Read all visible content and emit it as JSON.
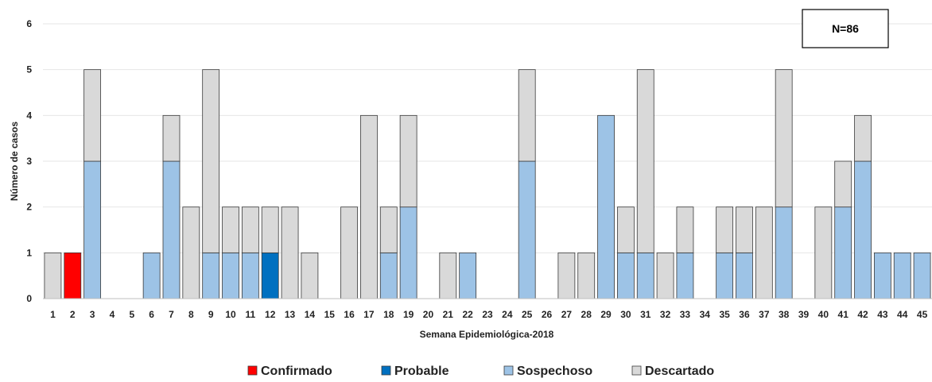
{
  "chart_data": {
    "type": "bar",
    "stacked": true,
    "xlabel": "Semana Epidemiológica-2018",
    "ylabel": "Número de casos",
    "ylim": [
      0,
      6
    ],
    "yticks": [
      0,
      1,
      2,
      3,
      4,
      5,
      6
    ],
    "grid": true,
    "legend_position": "bottom",
    "annotation": "N=86",
    "categories": [
      "1",
      "2",
      "3",
      "4",
      "5",
      "6",
      "7",
      "8",
      "9",
      "10",
      "11",
      "12",
      "13",
      "14",
      "15",
      "16",
      "17",
      "18",
      "19",
      "20",
      "21",
      "22",
      "23",
      "24",
      "25",
      "26",
      "27",
      "28",
      "29",
      "30",
      "31",
      "32",
      "33",
      "34",
      "35",
      "36",
      "37",
      "38",
      "39",
      "40",
      "41",
      "42",
      "43",
      "44",
      "45"
    ],
    "series": [
      {
        "name": "Confirmado",
        "color": "#ff0000",
        "values": [
          0,
          1,
          0,
          0,
          0,
          0,
          0,
          0,
          0,
          0,
          0,
          0,
          0,
          0,
          0,
          0,
          0,
          0,
          0,
          0,
          0,
          0,
          0,
          0,
          0,
          0,
          0,
          0,
          0,
          0,
          0,
          0,
          0,
          0,
          0,
          0,
          0,
          0,
          0,
          0,
          0,
          0,
          0,
          0,
          0
        ]
      },
      {
        "name": "Probable",
        "color": "#0070c0",
        "values": [
          0,
          0,
          0,
          0,
          0,
          0,
          0,
          0,
          0,
          0,
          0,
          1,
          0,
          0,
          0,
          0,
          0,
          0,
          0,
          0,
          0,
          0,
          0,
          0,
          0,
          0,
          0,
          0,
          0,
          0,
          0,
          0,
          0,
          0,
          0,
          0,
          0,
          0,
          0,
          0,
          0,
          0,
          0,
          0,
          0
        ]
      },
      {
        "name": "Sospechoso",
        "color": "#9dc3e6",
        "values": [
          0,
          0,
          3,
          0,
          0,
          1,
          3,
          0,
          1,
          1,
          1,
          0,
          0,
          0,
          0,
          0,
          0,
          1,
          2,
          0,
          0,
          1,
          0,
          0,
          3,
          0,
          0,
          0,
          4,
          1,
          1,
          0,
          1,
          0,
          1,
          1,
          0,
          2,
          0,
          0,
          2,
          3,
          1,
          1,
          1
        ]
      },
      {
        "name": "Descartado",
        "color": "#d9d9d9",
        "values": [
          1,
          0,
          2,
          0,
          0,
          0,
          1,
          2,
          4,
          1,
          1,
          1,
          2,
          1,
          0,
          2,
          4,
          1,
          2,
          0,
          1,
          0,
          0,
          0,
          2,
          0,
          1,
          1,
          0,
          1,
          4,
          1,
          1,
          0,
          1,
          1,
          2,
          3,
          0,
          2,
          1,
          1,
          0,
          0,
          0
        ]
      }
    ]
  }
}
